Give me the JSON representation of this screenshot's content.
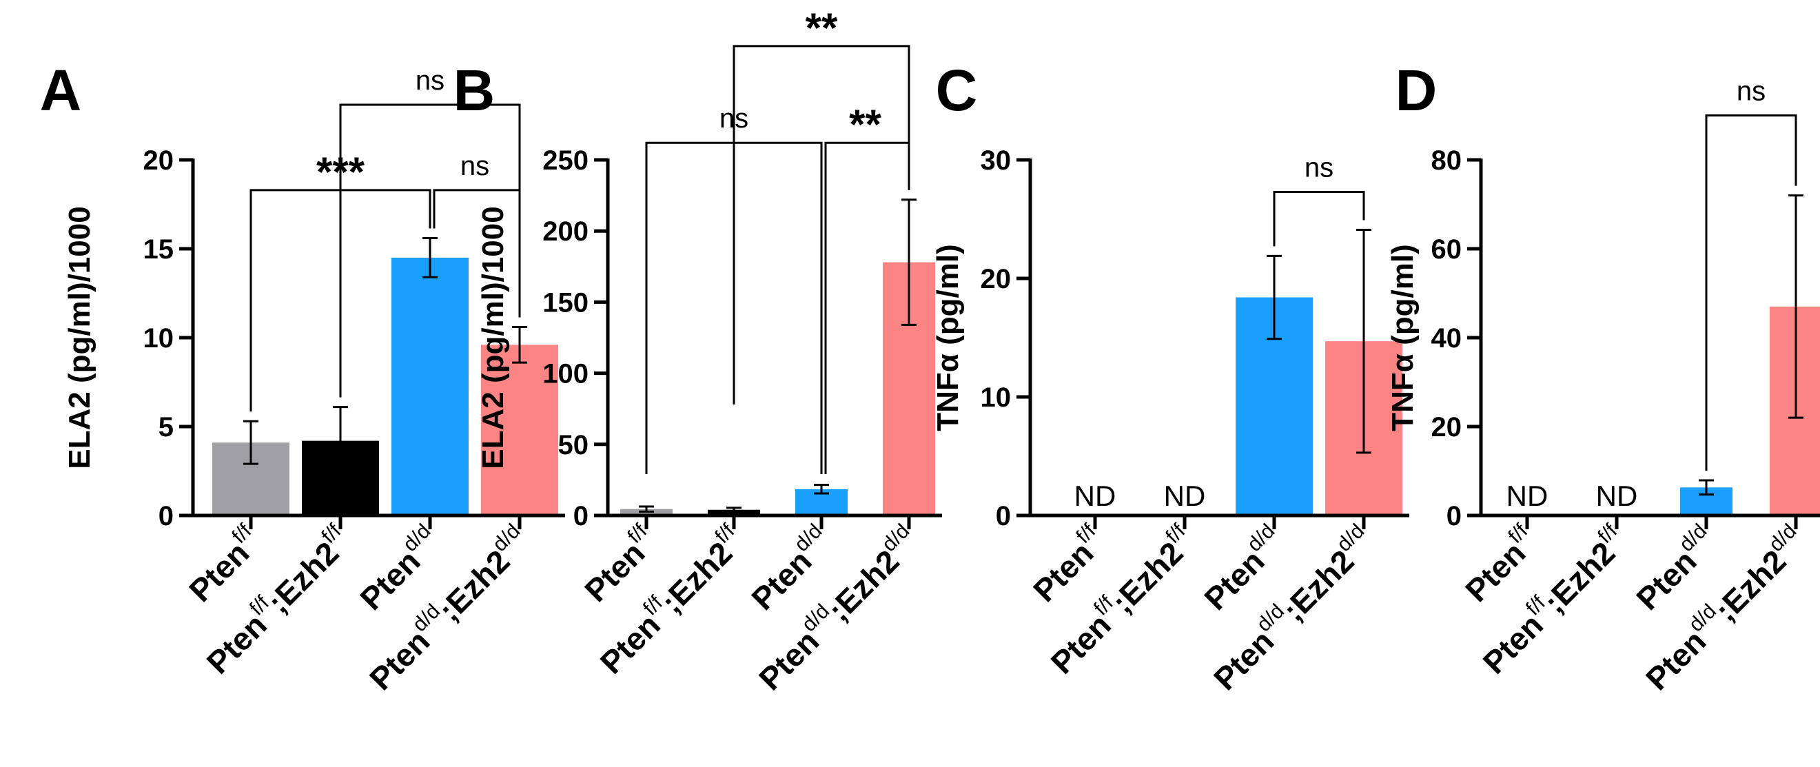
{
  "chart_data": [
    {
      "type": "bar",
      "panel": "A",
      "ylabel": "ELA2 (pg/ml)/1000",
      "ylim": [
        0,
        20
      ],
      "yticks": [
        0,
        5,
        10,
        15,
        20
      ],
      "categories": [
        {
          "base": "Pten",
          "sup": "f/f",
          "suffix": "",
          "suffix_sup": ""
        },
        {
          "base": "Pten",
          "sup": "f/f",
          "suffix": ";Ezh2",
          "suffix_sup": "f/f"
        },
        {
          "base": "Pten",
          "sup": "d/d",
          "suffix": "",
          "suffix_sup": ""
        },
        {
          "base": "Pten",
          "sup": "d/d",
          "suffix": ";Ezh2",
          "suffix_sup": "d/d"
        }
      ],
      "values": [
        4.1,
        4.2,
        14.5,
        9.6
      ],
      "errors": [
        1.2,
        1.9,
        1.1,
        1.0
      ],
      "colors": [
        "#a0a0a4",
        "#000000",
        "#1a9fff",
        "#fb8585"
      ],
      "nd": [],
      "brackets": [
        {
          "from": 0,
          "to": 2,
          "label": "***",
          "y": 18.3
        },
        {
          "from": 2,
          "to": 3,
          "label": "ns",
          "y": 18.3
        },
        {
          "from": 1,
          "to": 3,
          "label": "ns",
          "y": 23.1
        }
      ]
    },
    {
      "type": "bar",
      "panel": "B",
      "ylabel": "ELA2 (pg/ml)/1000",
      "ylim": [
        0,
        250
      ],
      "yticks": [
        0,
        50,
        100,
        150,
        200,
        250
      ],
      "categories": [
        {
          "base": "Pten",
          "sup": "f/f",
          "suffix": "",
          "suffix_sup": ""
        },
        {
          "base": "Pten",
          "sup": "f/f",
          "suffix": ";Ezh2",
          "suffix_sup": "f/f"
        },
        {
          "base": "Pten",
          "sup": "d/d",
          "suffix": "",
          "suffix_sup": ""
        },
        {
          "base": "Pten",
          "sup": "d/d",
          "suffix": ";Ezh2",
          "suffix_sup": "d/d"
        }
      ],
      "values": [
        4.5,
        4.0,
        18.5,
        178
      ],
      "errors": [
        1.8,
        1.4,
        3.0,
        44
      ],
      "colors": [
        "#a0a0a4",
        "#000000",
        "#1a9fff",
        "#fb8585"
      ],
      "nd": [],
      "brackets": [
        {
          "from": 0,
          "to": 2,
          "label": "ns",
          "y": 262
        },
        {
          "from": 2,
          "to": 3,
          "label": "**",
          "y": 262
        },
        {
          "from": 1,
          "to": 3,
          "label": "**",
          "y": 330
        }
      ]
    },
    {
      "type": "bar",
      "panel": "C",
      "ylabel": "TNFα (pg/ml)",
      "ylim": [
        0,
        30
      ],
      "yticks": [
        0,
        10,
        20,
        30
      ],
      "categories": [
        {
          "base": "Pten",
          "sup": "f/f",
          "suffix": "",
          "suffix_sup": ""
        },
        {
          "base": "Pten",
          "sup": "f/f",
          "suffix": ";Ezh2",
          "suffix_sup": "f/f"
        },
        {
          "base": "Pten",
          "sup": "d/d",
          "suffix": "",
          "suffix_sup": ""
        },
        {
          "base": "Pten",
          "sup": "d/d",
          "suffix": ";Ezh2",
          "suffix_sup": "d/d"
        }
      ],
      "values": [
        0,
        0,
        18.4,
        14.7
      ],
      "errors": [
        0,
        0,
        3.5,
        9.4
      ],
      "colors": [
        "#a0a0a4",
        "#000000",
        "#1a9fff",
        "#fb8585"
      ],
      "nd": [
        "ND",
        "ND",
        "",
        ""
      ],
      "brackets": [
        {
          "from": 2,
          "to": 3,
          "label": "ns",
          "y": 27.3
        }
      ]
    },
    {
      "type": "bar",
      "panel": "D",
      "ylabel": "TNFα (pg/ml)",
      "ylim": [
        0,
        80
      ],
      "yticks": [
        0,
        20,
        40,
        60,
        80
      ],
      "categories": [
        {
          "base": "Pten",
          "sup": "f/f",
          "suffix": "",
          "suffix_sup": ""
        },
        {
          "base": "Pten",
          "sup": "f/f",
          "suffix": ";Ezh2",
          "suffix_sup": "f/f"
        },
        {
          "base": "Pten",
          "sup": "d/d",
          "suffix": "",
          "suffix_sup": ""
        },
        {
          "base": "Pten",
          "sup": "d/d",
          "suffix": ";Ezh2",
          "suffix_sup": "d/d"
        }
      ],
      "values": [
        0,
        0,
        6.3,
        47
      ],
      "errors": [
        0,
        0,
        1.6,
        25
      ],
      "colors": [
        "#a0a0a4",
        "#000000",
        "#1a9fff",
        "#fb8585"
      ],
      "nd": [
        "ND",
        "ND",
        "",
        ""
      ],
      "brackets": [
        {
          "from": 2,
          "to": 3,
          "label": "ns",
          "y": 90
        }
      ]
    }
  ]
}
